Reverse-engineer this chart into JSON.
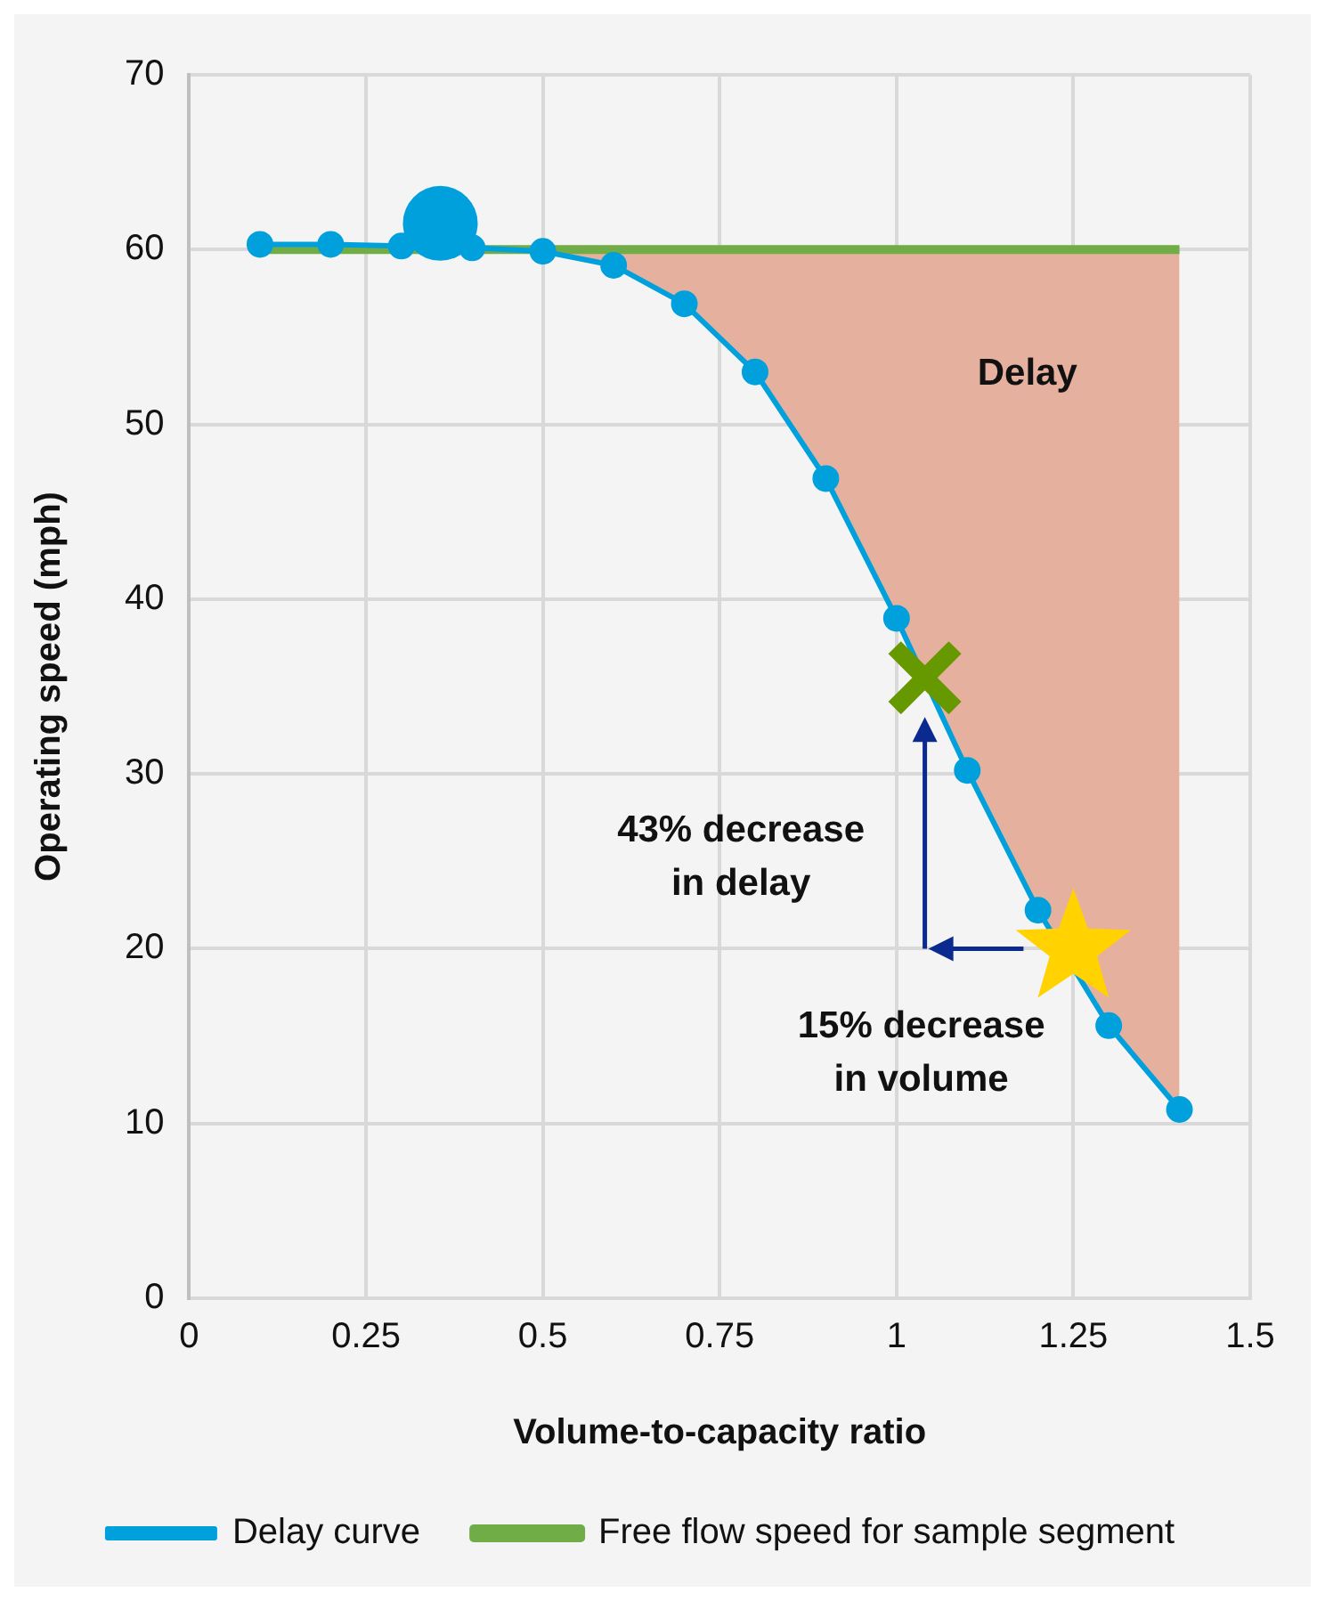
{
  "chart_data": {
    "type": "line",
    "xlabel": "Volume-to-capacity ratio",
    "ylabel": "Operating speed (mph)",
    "xlim": [
      0,
      1.5
    ],
    "xticks": [
      0,
      0.25,
      0.5,
      0.75,
      1,
      1.25,
      1.5
    ],
    "ylim": [
      0,
      70
    ],
    "yticks": [
      0,
      10,
      20,
      30,
      40,
      50,
      60,
      70
    ],
    "grid": true,
    "legend": "bottom",
    "series": [
      {
        "name": "Delay curve",
        "color": "#00a0dc",
        "marker": "circle",
        "x": [
          0.1,
          0.2,
          0.3,
          0.4,
          0.5,
          0.6,
          0.7,
          0.8,
          0.9,
          1.0,
          1.1,
          1.2,
          1.3,
          1.4
        ],
        "values": [
          60.3,
          60.3,
          60.2,
          60.1,
          59.9,
          59.1,
          56.9,
          53,
          46.9,
          38.9,
          30.2,
          22.2,
          15.6,
          10.8
        ],
        "lower": [
          null,
          null,
          null,
          null,
          59.9,
          59.1,
          56.9,
          53,
          46.9,
          38.9,
          30.2,
          22.2,
          15.6,
          10.8
        ],
        "upper": [
          null,
          null,
          null,
          null,
          60,
          60,
          60,
          60,
          60,
          60,
          60,
          60,
          60,
          60
        ]
      },
      {
        "name": "Free flow speed for sample segment",
        "color": "#70ad47",
        "marker": "none",
        "x": [
          0.1,
          1.4
        ],
        "values": [
          60,
          60
        ]
      },
      {
        "type": "bubble",
        "color": "#00a0dc",
        "x": [
          0.355
        ],
        "values": [
          61.5
        ],
        "sizes": [
          1
        ]
      },
      {
        "type": "scatter",
        "color": "#669900",
        "marker": "cross",
        "x": [
          1.04
        ],
        "values": [
          35.5
        ]
      },
      {
        "type": "scatter",
        "color": "#ffd200",
        "marker": "star",
        "x": [
          1.25
        ],
        "values": [
          20
        ]
      }
    ],
    "annotations": [
      "Delay",
      "43% decrease\nin delay",
      "15% decrease\nin volume"
    ]
  }
}
